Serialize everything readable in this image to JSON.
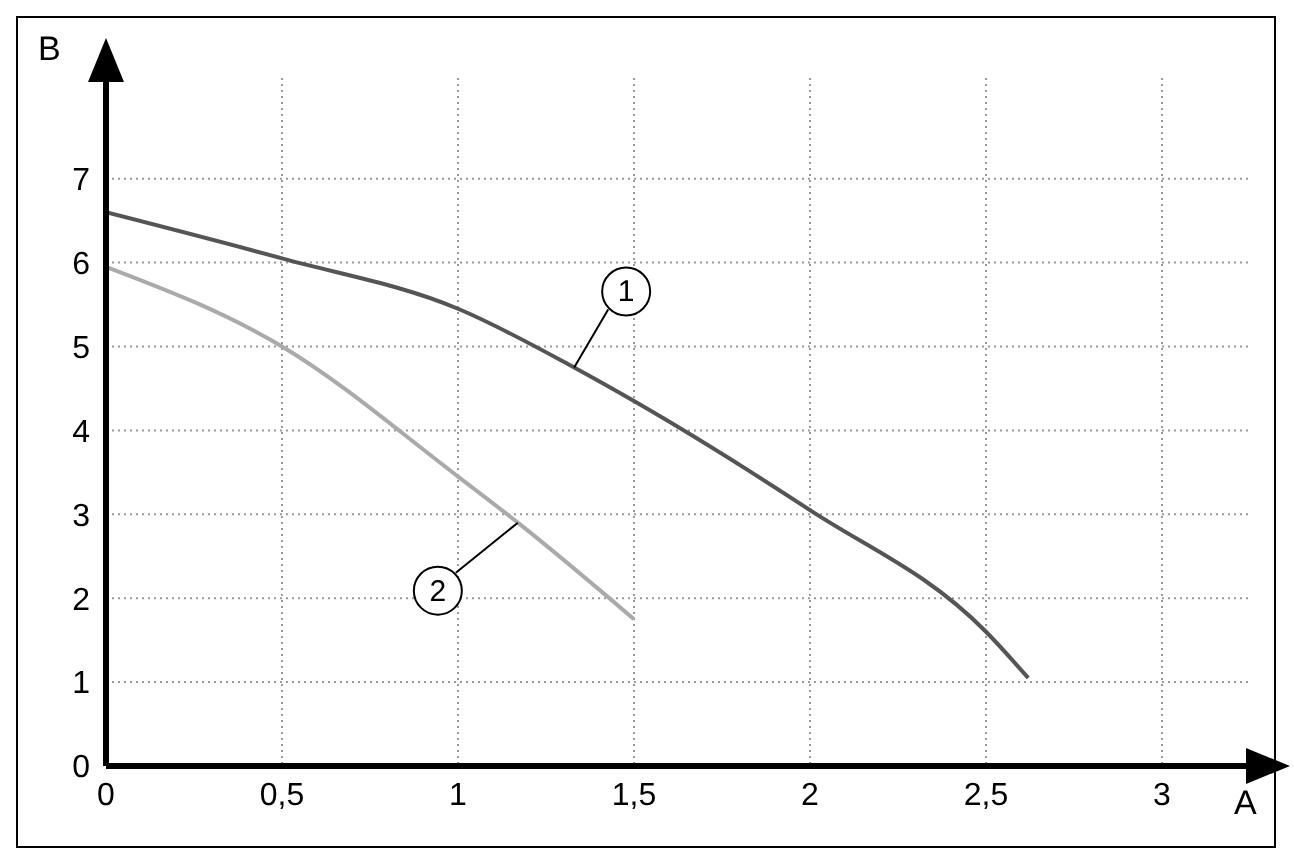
{
  "chart_data": {
    "type": "line",
    "xlabel": "A",
    "ylabel": "B",
    "series": [
      {
        "name": "1",
        "color": "#555555",
        "x": [
          0,
          0.5,
          1,
          1.33,
          1.5,
          2,
          2.5,
          2.62
        ],
        "values": [
          6.6,
          6.05,
          5.45,
          4.75,
          4.35,
          3.05,
          1.6,
          1.05
        ]
      },
      {
        "name": "2",
        "color": "#aaaaaa",
        "x": [
          0,
          0.5,
          1,
          1.17,
          1.5
        ],
        "values": [
          5.95,
          5.0,
          3.45,
          2.9,
          1.75
        ]
      }
    ],
    "xlim": [
      0,
      3.25
    ],
    "ylim": [
      0,
      8.2
    ],
    "xticks": [
      0,
      {
        "value": 0.5,
        "label": "0,5"
      },
      1,
      {
        "value": 1.5,
        "label": "1,5"
      },
      2,
      {
        "value": 2.5,
        "label": "2,5"
      },
      3
    ],
    "yticks": [
      0,
      1,
      2,
      3,
      4,
      5,
      6,
      7
    ],
    "grid": true,
    "marker": "none",
    "line_style": "solid"
  }
}
